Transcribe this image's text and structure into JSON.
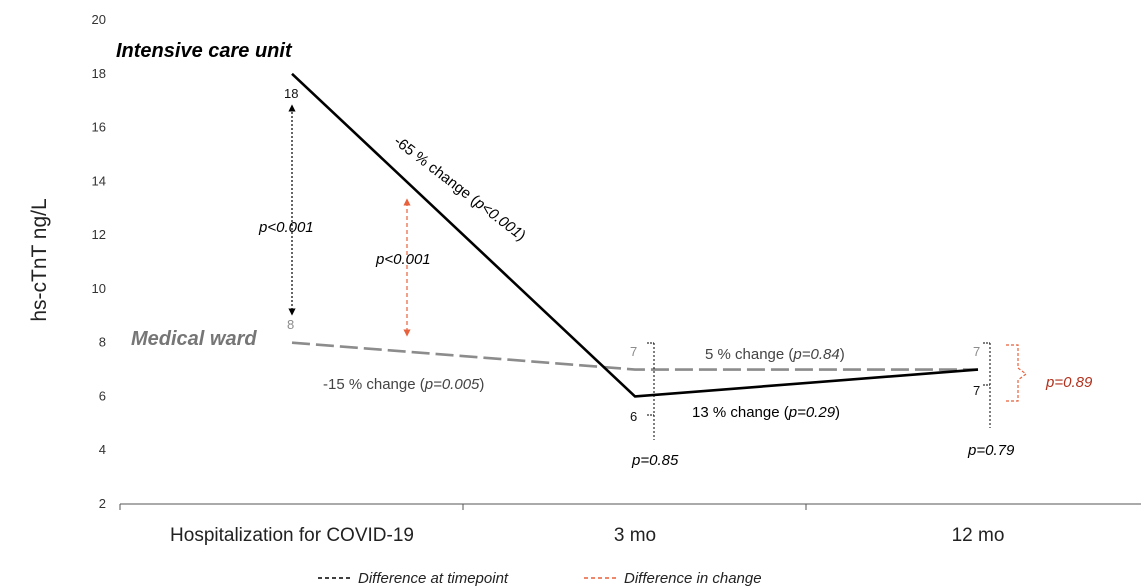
{
  "chart_data": {
    "type": "line",
    "ylabel": "hs-cTnT ng/L",
    "xlabel": "",
    "ylim": [
      2,
      20
    ],
    "yticks": [
      2,
      4,
      6,
      8,
      10,
      12,
      14,
      16,
      18,
      20
    ],
    "categories": [
      "Hospitalization for COVID-19",
      "3 mo",
      "12 mo"
    ],
    "series": [
      {
        "name": "Intensive care unit",
        "color": "#000000",
        "style": "solid",
        "values": [
          18,
          6,
          7
        ],
        "value_labels": [
          "18",
          "6",
          "7"
        ]
      },
      {
        "name": "Medical ward",
        "color": "#8c8c8c",
        "style": "dashed",
        "values": [
          8,
          7,
          7
        ],
        "value_labels": [
          "8",
          "7",
          "7"
        ]
      }
    ],
    "annotations": {
      "icu_change_1": {
        "prefix": "-65 % change (",
        "p": "p<0.001",
        "suffix": ")"
      },
      "icu_change_2": {
        "prefix": "13 % change (",
        "p": "p=0.29",
        "suffix": ")"
      },
      "mw_change_1": {
        "prefix": "-15 % change (",
        "p": "p=0.005",
        "suffix": ")"
      },
      "mw_change_2": {
        "prefix": "5 % change (",
        "p": "p=0.84",
        "suffix": ")"
      },
      "diff_timepoint_1": "p<0.001",
      "diff_change_1": "p<0.001",
      "diff_timepoint_2": "p=0.85",
      "diff_timepoint_3": "p=0.79",
      "diff_change_2": "p=0.89"
    },
    "legend": {
      "placement": "bottom",
      "items": [
        {
          "label": "Difference at timepoint",
          "color": "#000000"
        },
        {
          "label": "Difference in change",
          "color": "#e8613c"
        }
      ]
    },
    "colors": {
      "accent_red": "#e8613c",
      "dark_red": "#b0321e",
      "grey": "#8c8c8c"
    }
  }
}
